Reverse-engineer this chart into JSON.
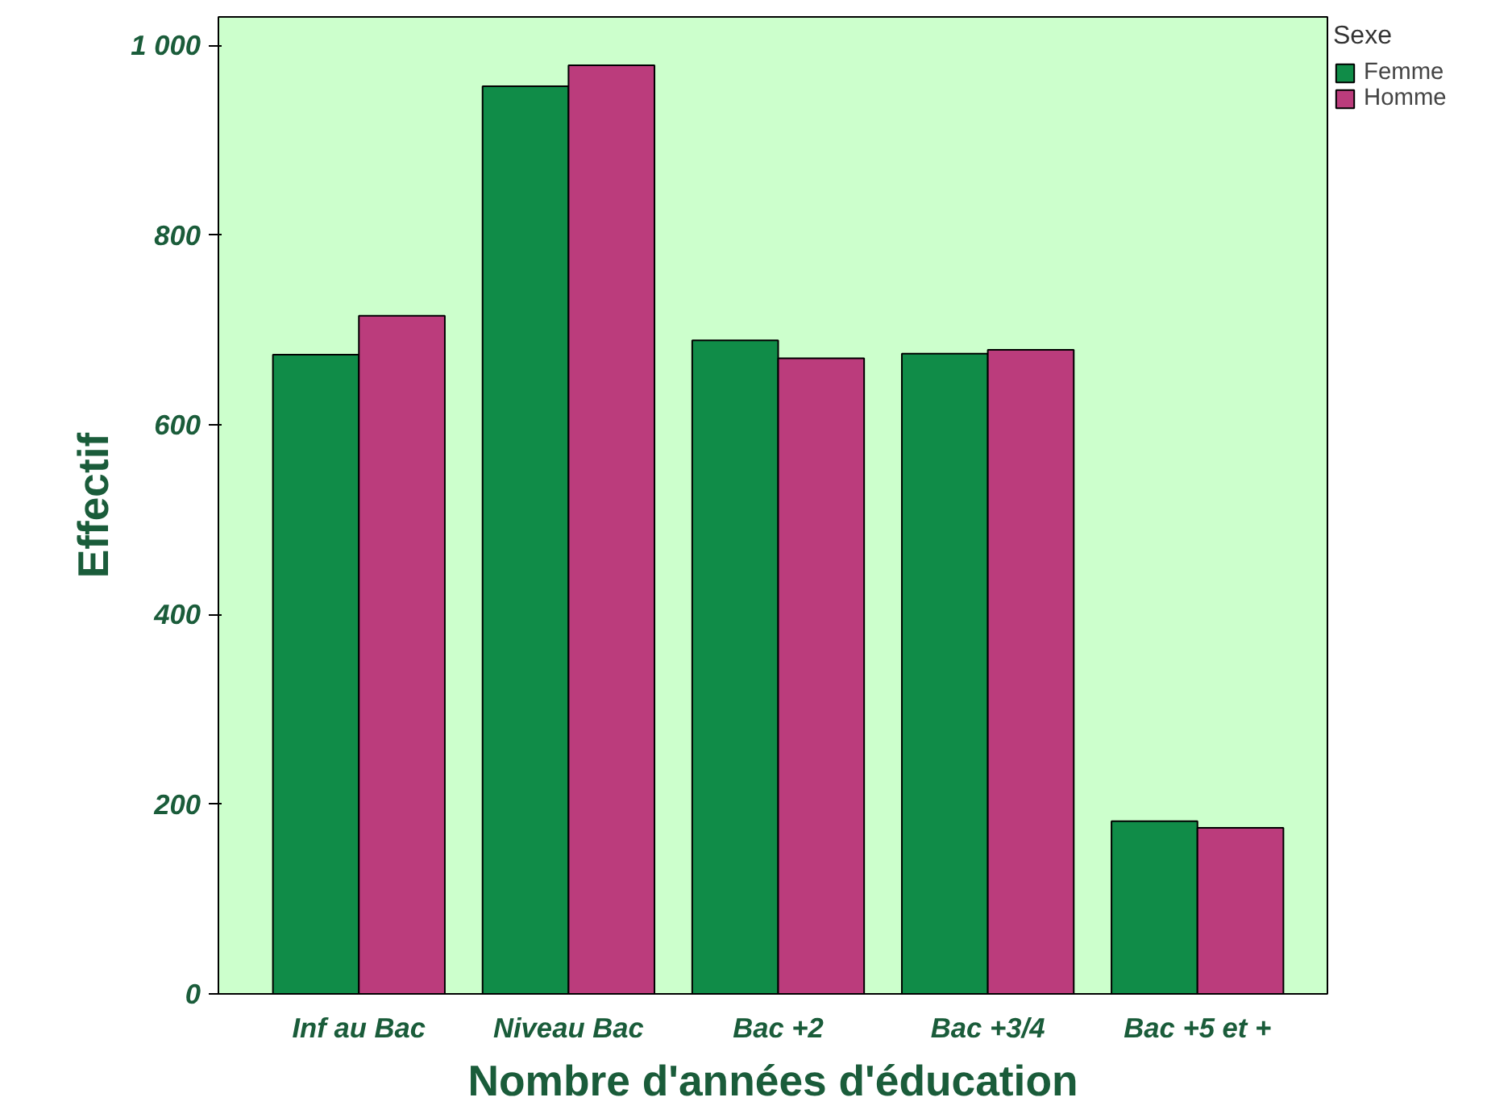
{
  "chart_data": {
    "type": "bar",
    "xlabel": "Nombre d'années d'éducation",
    "ylabel": "Effectif",
    "legend_title": "Sexe",
    "categories": [
      "Inf au Bac",
      "Niveau Bac",
      "Bac +2",
      "Bac +3/4",
      "Bac +5 et +"
    ],
    "series": [
      {
        "name": "Femme",
        "color": "#108c48",
        "values": [
          674,
          957,
          689,
          675,
          182
        ]
      },
      {
        "name": "Homme",
        "color": "#bb3c7c",
        "values": [
          715,
          979,
          670,
          679,
          175
        ]
      }
    ],
    "ylim": [
      0,
      1030
    ],
    "yticks": [
      0,
      200,
      400,
      600,
      800,
      {
        "value": 1000,
        "label": "1 000"
      }
    ],
    "grid": false,
    "legend": "top right"
  }
}
